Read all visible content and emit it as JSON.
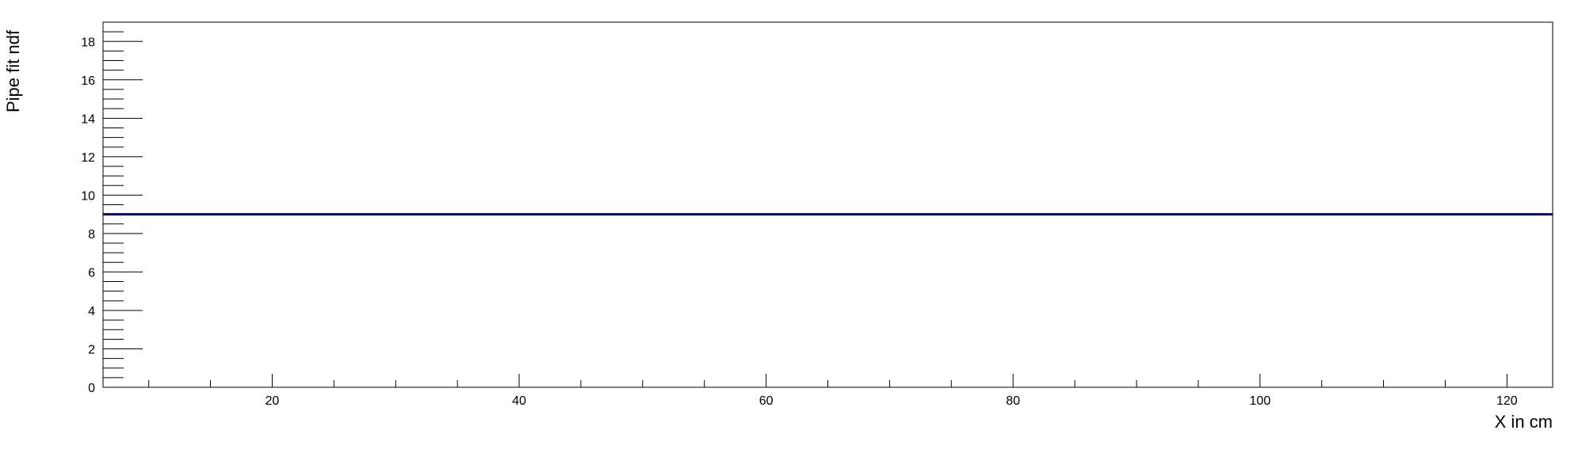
{
  "chart_data": {
    "type": "line",
    "xlabel": "X in cm",
    "ylabel": "Pipe fit ndf",
    "xlim": [
      6.3,
      123.7
    ],
    "ylim": [
      0,
      19
    ],
    "x_ticks": [
      20,
      40,
      60,
      80,
      100,
      120
    ],
    "y_ticks": [
      0,
      2,
      4,
      6,
      8,
      10,
      12,
      14,
      16,
      18
    ],
    "x_minor_step": 5,
    "y_minor_step": 0.5,
    "grid": false,
    "series": [
      {
        "x": [
          6.3,
          123.7
        ],
        "y": [
          9,
          9
        ],
        "color": "#000080"
      }
    ]
  }
}
